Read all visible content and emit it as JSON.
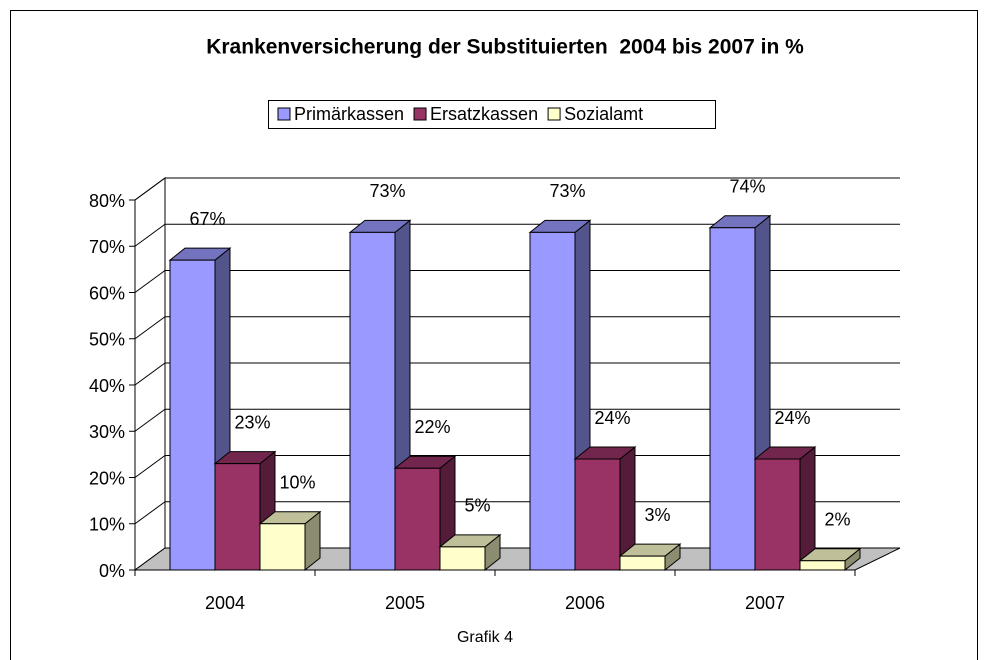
{
  "chart_data": {
    "type": "bar3d",
    "title": "Krankenversicherung der Substituierten  2004 bis 2007 in %",
    "caption": "Grafik 4",
    "categories": [
      "2004",
      "2005",
      "2006",
      "2007"
    ],
    "series": [
      {
        "name": "Primärkassen",
        "color": "#9999ff",
        "values": [
          67,
          73,
          73,
          74
        ],
        "value_labels": [
          "67%",
          "73%",
          "73%",
          "74%"
        ]
      },
      {
        "name": "Ersatzkassen",
        "color": "#993366",
        "values": [
          23,
          22,
          24,
          24
        ],
        "value_labels": [
          "23%",
          "22%",
          "24%",
          "24%"
        ]
      },
      {
        "name": "Sozialamt",
        "color": "#ffffcc",
        "values": [
          10,
          5,
          3,
          2
        ],
        "value_labels": [
          "10%",
          "5%",
          "3%",
          "2%"
        ]
      }
    ],
    "ylim": [
      0,
      80
    ],
    "yticks": [
      {
        "value": 0,
        "label": "0%"
      },
      {
        "value": 10,
        "label": "10%"
      },
      {
        "value": 20,
        "label": "20%"
      },
      {
        "value": 30,
        "label": "30%"
      },
      {
        "value": 40,
        "label": "40%"
      },
      {
        "value": 50,
        "label": "50%"
      },
      {
        "value": 60,
        "label": "60%"
      },
      {
        "value": 70,
        "label": "70%"
      },
      {
        "value": 80,
        "label": "80%"
      }
    ],
    "grid": true,
    "legend": "top"
  }
}
